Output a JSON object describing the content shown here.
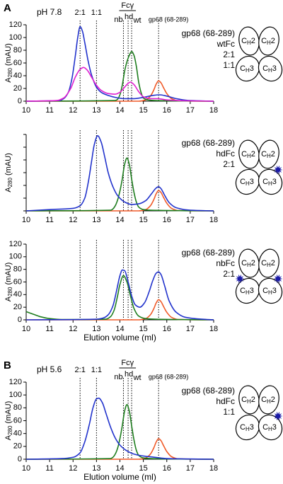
{
  "chart_data": [
    {
      "type": "line",
      "panel_label": "A",
      "ph_label": "pH 7.8",
      "group_label": "Fcγ",
      "xlim": [
        10,
        18
      ],
      "xticks": [
        10,
        11,
        12,
        13,
        14,
        15,
        16,
        17,
        18
      ],
      "ylim": [
        0,
        120
      ],
      "yticks": [
        0,
        20,
        40,
        60,
        80,
        100,
        120
      ],
      "ylabel": {
        "text": "A",
        "sub": "280",
        "unit": "(mAU)"
      },
      "markers": [
        {
          "x": 12.3,
          "label": "2:1"
        },
        {
          "x": 13.0,
          "label": "1:1"
        },
        {
          "x": 14.15,
          "label": "nb"
        },
        {
          "x": 14.35,
          "label": "hd"
        },
        {
          "x": 14.5,
          "label": "wt"
        },
        {
          "x": 15.65,
          "label": "gp68 (68-289)"
        }
      ],
      "domain_labels": [
        [
          "C",
          "H",
          "2"
        ],
        [
          "C",
          "H",
          "2"
        ],
        [
          "C",
          "H",
          "3"
        ],
        [
          "C",
          "H",
          "3"
        ]
      ],
      "series": [
        {
          "name": "gp68 (68-289)",
          "color": "#f05a28",
          "x": [
            10,
            14.8,
            15.1,
            15.3,
            15.45,
            15.55,
            15.65,
            15.75,
            15.85,
            16.0,
            16.2,
            16.5,
            18
          ],
          "values": [
            0,
            0,
            2,
            8,
            18,
            27,
            32,
            29,
            22,
            12,
            4,
            0.5,
            0
          ]
        },
        {
          "name": "wtFc",
          "color": "#1e7d1e",
          "x": [
            10,
            13.8,
            13.9,
            14.0,
            14.1,
            14.2,
            14.3,
            14.4,
            14.5,
            14.6,
            14.7,
            14.8,
            14.9,
            15.0,
            15.2,
            15.5,
            18
          ],
          "values": [
            0,
            1,
            3,
            10,
            25,
            47,
            62,
            72,
            78,
            72,
            55,
            30,
            14,
            5,
            2,
            1,
            0
          ]
        },
        {
          "name": "2:1",
          "color": "#2233cc",
          "x": [
            10,
            11.4,
            11.6,
            11.8,
            11.95,
            12.1,
            12.2,
            12.3,
            12.4,
            12.5,
            12.65,
            12.8,
            13.0,
            13.2,
            13.5,
            13.8,
            14.2,
            14.6,
            15.0,
            15.4,
            15.7,
            16.0,
            16.4,
            17,
            18
          ],
          "values": [
            0,
            1,
            4,
            14,
            35,
            72,
            100,
            117,
            110,
            92,
            62,
            40,
            22,
            14,
            9,
            6,
            4,
            4,
            6,
            9,
            10,
            8,
            4,
            1,
            0
          ]
        },
        {
          "name": "1:1",
          "color": "#e020d0",
          "x": [
            10,
            11.3,
            11.6,
            11.9,
            12.1,
            12.3,
            12.45,
            12.6,
            12.8,
            13.0,
            13.2,
            13.5,
            13.8,
            14.0,
            14.2,
            14.35,
            14.45,
            14.6,
            14.8,
            15.0,
            15.3,
            15.6,
            16.0,
            16.5,
            18
          ],
          "values": [
            0,
            1,
            5,
            20,
            38,
            50,
            53,
            49,
            37,
            25,
            17,
            12,
            11,
            14,
            22,
            28,
            30,
            26,
            15,
            7,
            4,
            4,
            2,
            1,
            0
          ]
        }
      ]
    },
    {
      "type": "line",
      "xlim": [
        10,
        18
      ],
      "xticks": [
        10,
        11,
        12,
        13,
        14,
        15,
        16,
        17,
        18
      ],
      "ylim": [
        0,
        120
      ],
      "yticks": [
        0,
        20,
        40,
        60,
        80,
        100,
        120
      ],
      "ytick_labels": false,
      "ylabel": {
        "text": "A",
        "sub": "280",
        "unit": "(mAU)"
      },
      "markers": [
        12.3,
        13.0,
        14.15,
        14.35,
        14.5,
        15.65
      ],
      "domain_labels": [
        [
          "C",
          "H",
          "2"
        ],
        [
          "C",
          "H",
          "2"
        ],
        [
          "C",
          "H",
          "3"
        ],
        [
          "C",
          "H",
          "3"
        ]
      ],
      "series": [
        {
          "name": "gp68 (68-289)",
          "color": "#f05a28",
          "x": [
            10,
            14.8,
            15.1,
            15.3,
            15.45,
            15.55,
            15.65,
            15.75,
            15.85,
            16.0,
            16.2,
            16.5,
            18
          ],
          "values": [
            0,
            0,
            2,
            8,
            18,
            27,
            32,
            29,
            22,
            12,
            4,
            0.5,
            0
          ]
        },
        {
          "name": "hdFc",
          "color": "#1e7d1e",
          "x": [
            10,
            13.6,
            13.7,
            13.8,
            13.9,
            14.0,
            14.1,
            14.2,
            14.3,
            14.4,
            14.5,
            14.6,
            14.7,
            14.8,
            15.0,
            15.3,
            18
          ],
          "values": [
            0,
            1,
            3,
            8,
            17,
            31,
            50,
            73,
            83,
            73,
            50,
            29,
            14,
            6,
            2,
            1,
            0
          ]
        },
        {
          "name": "2:1",
          "color": "#2233cc",
          "x": [
            10,
            11,
            12.0,
            12.3,
            12.5,
            12.65,
            12.8,
            12.9,
            13.05,
            13.2,
            13.35,
            13.5,
            13.7,
            13.9,
            14.2,
            14.5,
            14.8,
            15.1,
            15.35,
            15.55,
            15.65,
            15.75,
            15.9,
            16.1,
            16.4,
            17,
            18
          ],
          "values": [
            0,
            2,
            4,
            8,
            20,
            45,
            80,
            103,
            118,
            108,
            85,
            60,
            38,
            24,
            14,
            10,
            11,
            16,
            27,
            36,
            38,
            35,
            25,
            13,
            5,
            1,
            0
          ]
        }
      ]
    },
    {
      "type": "line",
      "xlim": [
        10,
        18
      ],
      "xticks": [
        10,
        11,
        12,
        13,
        14,
        15,
        16,
        17,
        18
      ],
      "ylim": [
        0,
        120
      ],
      "yticks": [
        0,
        20,
        40,
        60,
        80,
        100,
        120
      ],
      "ylabel": {
        "text": "A",
        "sub": "280",
        "unit": "(mAU)"
      },
      "xlabel": "Elution volume (ml)",
      "markers": [
        12.3,
        13.0,
        14.15,
        14.35,
        14.5,
        15.65
      ],
      "domain_labels": [
        [
          "C",
          "H",
          "2"
        ],
        [
          "C",
          "H",
          "2"
        ],
        [
          "C",
          "H",
          "3"
        ],
        [
          "C",
          "H",
          "3"
        ]
      ],
      "series": [
        {
          "name": "gp68 (68-289)",
          "color": "#f05a28",
          "x": [
            10,
            14.8,
            15.1,
            15.3,
            15.45,
            15.55,
            15.65,
            15.75,
            15.85,
            16.0,
            16.2,
            16.5,
            18
          ],
          "values": [
            0,
            0,
            2,
            8,
            18,
            27,
            32,
            29,
            22,
            12,
            4,
            0.5,
            0
          ]
        },
        {
          "name": "nbFc",
          "color": "#1e7d1e",
          "x": [
            10,
            10.3,
            10.6,
            11,
            11.5,
            13.4,
            13.6,
            13.75,
            13.9,
            14.0,
            14.15,
            14.3,
            14.45,
            14.6,
            14.8,
            15.1,
            15.5,
            18
          ],
          "values": [
            13,
            9,
            5,
            2,
            0.5,
            1,
            5,
            15,
            38,
            56,
            70,
            60,
            38,
            18,
            6,
            2,
            1,
            0
          ]
        },
        {
          "name": "2:1",
          "color": "#2233cc",
          "x": [
            10,
            13.0,
            13.3,
            13.5,
            13.7,
            13.85,
            14.0,
            14.1,
            14.2,
            14.35,
            14.5,
            14.65,
            14.85,
            15.05,
            15.25,
            15.4,
            15.55,
            15.65,
            15.75,
            15.9,
            16.1,
            16.4,
            16.8,
            17.5,
            18
          ],
          "values": [
            0,
            1,
            3,
            8,
            22,
            45,
            70,
            79,
            78,
            60,
            38,
            24,
            20,
            27,
            45,
            62,
            74,
            76,
            72,
            55,
            30,
            12,
            4,
            1,
            0
          ]
        }
      ]
    },
    {
      "type": "line",
      "panel_label": "B",
      "ph_label": "pH 5.6",
      "group_label": "Fcγ",
      "xlim": [
        10,
        18
      ],
      "xticks": [
        10,
        11,
        12,
        13,
        14,
        15,
        16,
        17,
        18
      ],
      "ylim": [
        0,
        120
      ],
      "yticks": [
        0,
        20,
        40,
        60,
        80,
        100,
        120
      ],
      "ylabel": {
        "text": "A",
        "sub": "280",
        "unit": "(mAU)"
      },
      "xlabel": "Elution volume (ml)",
      "markers": [
        {
          "x": 12.3,
          "label": "2:1"
        },
        {
          "x": 13.0,
          "label": "1:1"
        },
        {
          "x": 14.15,
          "label": "nb"
        },
        {
          "x": 14.35,
          "label": "hd"
        },
        {
          "x": 14.5,
          "label": "wt"
        },
        {
          "x": 15.65,
          "label": "gp68 (68-289)"
        }
      ],
      "domain_labels": [
        [
          "C",
          "H",
          "2"
        ],
        [
          "C",
          "H",
          "2"
        ],
        [
          "C",
          "H",
          "3"
        ],
        [
          "C",
          "H",
          "3"
        ]
      ],
      "series": [
        {
          "name": "gp68 (68-289)",
          "color": "#f05a28",
          "x": [
            10,
            14.8,
            15.1,
            15.3,
            15.45,
            15.55,
            15.65,
            15.75,
            15.85,
            16.0,
            16.2,
            16.5,
            18
          ],
          "values": [
            0,
            0,
            2,
            8,
            18,
            27,
            32,
            29,
            22,
            12,
            4,
            0.5,
            0
          ]
        },
        {
          "name": "hdFc",
          "color": "#1e7d1e",
          "x": [
            10,
            13.6,
            13.7,
            13.8,
            13.9,
            14.0,
            14.1,
            14.2,
            14.3,
            14.4,
            14.5,
            14.6,
            14.7,
            14.8,
            15.0,
            15.3,
            18
          ],
          "values": [
            0,
            1,
            3,
            8,
            17,
            32,
            52,
            75,
            85,
            75,
            52,
            30,
            14,
            6,
            2,
            1,
            0
          ]
        },
        {
          "name": "1:1",
          "color": "#2233cc",
          "x": [
            10,
            11.5,
            12.0,
            12.3,
            12.5,
            12.7,
            12.85,
            13.0,
            13.1,
            13.25,
            13.4,
            13.6,
            13.8,
            14.0,
            14.3,
            14.6,
            15.0,
            15.5,
            16,
            18
          ],
          "values": [
            0,
            1,
            3,
            10,
            27,
            55,
            80,
            94,
            95,
            88,
            72,
            50,
            33,
            22,
            13,
            8,
            5,
            3,
            1,
            0
          ]
        }
      ]
    }
  ]
}
